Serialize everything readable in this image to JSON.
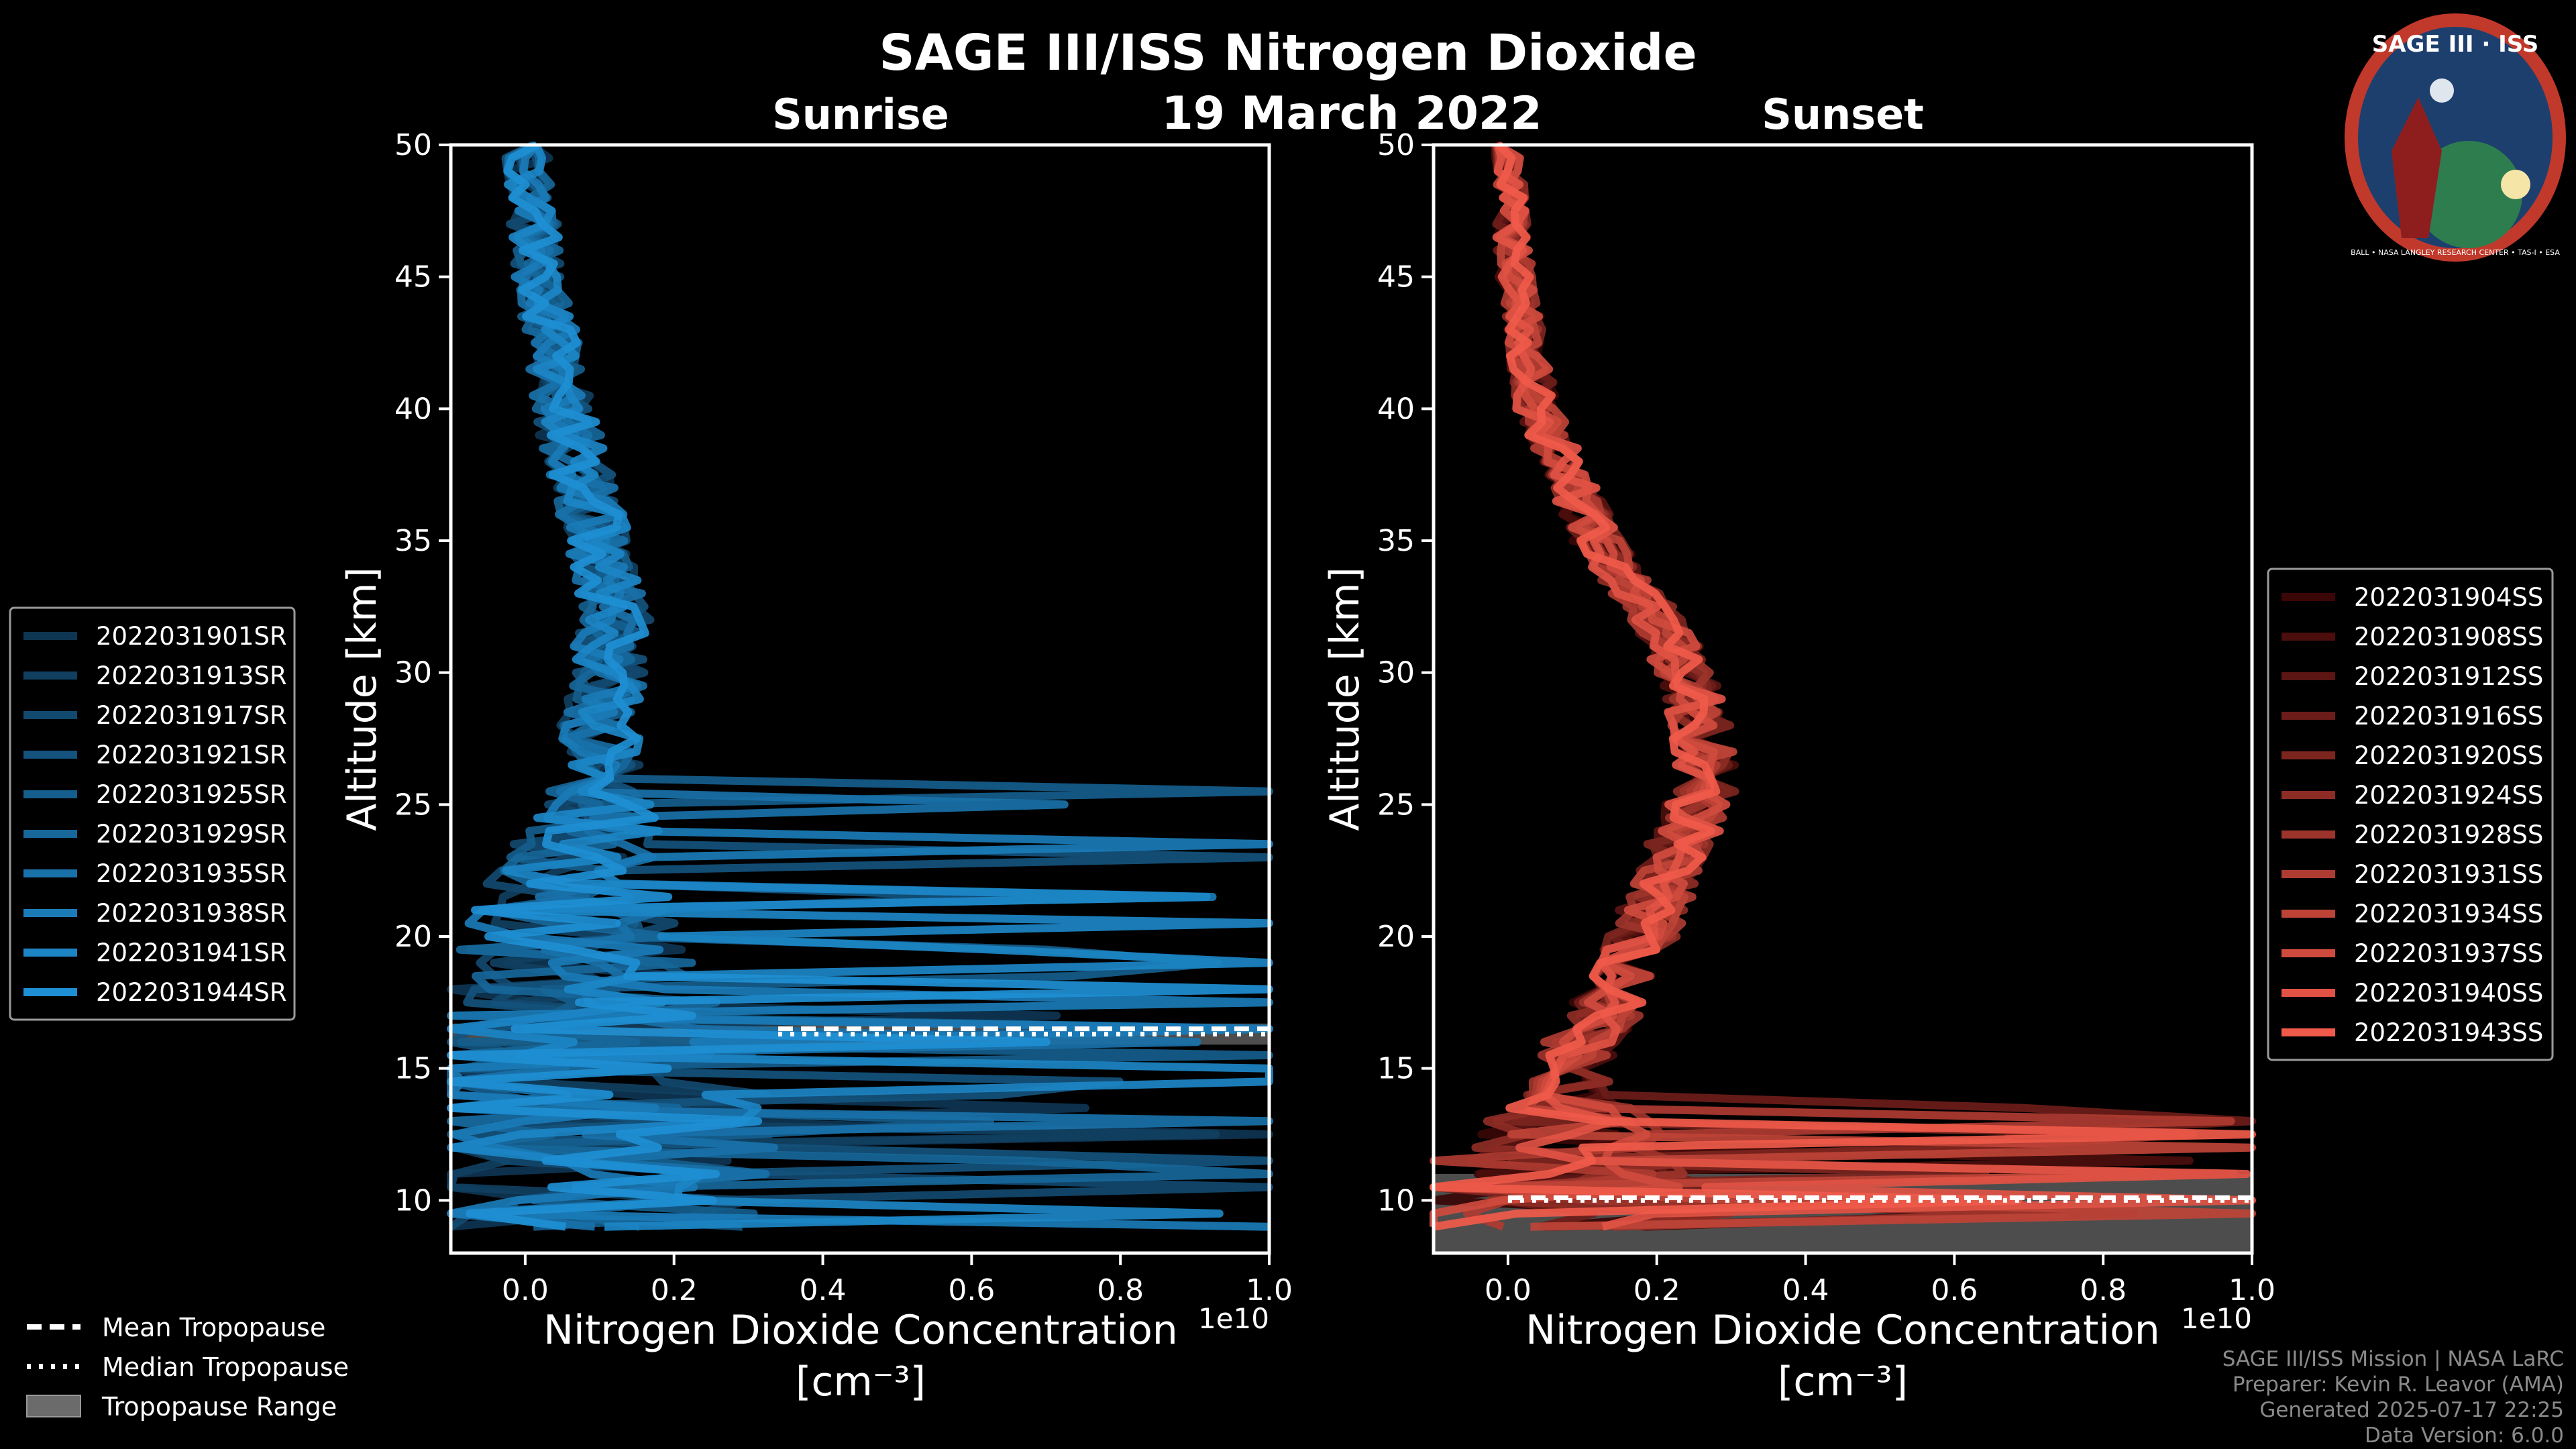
{
  "title": "SAGE III/ISS Nitrogen Dioxide",
  "subtitle": "19 March 2022",
  "logo": {
    "text": "SAGE III · ISS",
    "ring_text": "BALL • NASA LANGLEY RESEARCH CENTER • TAS-I • ESA",
    "colors": {
      "ring": "#c0392b",
      "field": "#1d3f6e",
      "globe": "#2e7d4f"
    }
  },
  "chart_data": [
    {
      "type": "line",
      "title": "Sunrise",
      "xlabel": "Nitrogen Dioxide Concentration",
      "xunit": "[cm⁻³]",
      "ylabel": "Altitude [km]",
      "offset_text": "1e10",
      "xlim": [
        -0.1,
        1.0
      ],
      "ylim": [
        8,
        50
      ],
      "xticks": [
        "0.0",
        "0.2",
        "0.4",
        "0.6",
        "0.8",
        "1.0"
      ],
      "xtick_values": [
        0.0,
        0.2,
        0.4,
        0.6,
        0.8,
        1.0
      ],
      "yticks": [
        "10",
        "15",
        "20",
        "25",
        "30",
        "35",
        "40",
        "45",
        "50"
      ],
      "ytick_values": [
        10,
        15,
        20,
        25,
        30,
        35,
        40,
        45,
        50
      ],
      "legend_position": "left",
      "series_colors_from": "#0e3552",
      "series_colors_to": "#1e8fd4",
      "series": [
        {
          "name": "2022031901SR"
        },
        {
          "name": "2022031913SR"
        },
        {
          "name": "2022031917SR"
        },
        {
          "name": "2022031921SR"
        },
        {
          "name": "2022031925SR"
        },
        {
          "name": "2022031929SR"
        },
        {
          "name": "2022031935SR"
        },
        {
          "name": "2022031938SR"
        },
        {
          "name": "2022031941SR"
        },
        {
          "name": "2022031944SR"
        }
      ],
      "profile": {
        "alt": [
          50,
          45,
          40,
          35,
          32,
          30,
          28,
          26,
          24,
          22,
          20,
          18,
          16,
          14,
          12,
          10
        ],
        "mean": [
          0.0,
          0.02,
          0.05,
          0.1,
          0.12,
          0.11,
          0.1,
          0.1,
          0.08,
          0.06,
          0.05,
          0.05,
          0.06,
          0.06,
          0.06,
          0.06
        ]
      },
      "noise_below_km": 26,
      "tropopause": {
        "mean_km": 16.5,
        "median_km": 16.3,
        "range_km": [
          15.9,
          16.7
        ],
        "x_start": 0.34
      }
    },
    {
      "type": "line",
      "title": "Sunset",
      "xlabel": "Nitrogen Dioxide Concentration",
      "xunit": "[cm⁻³]",
      "ylabel": "Altitude [km]",
      "offset_text": "1e10",
      "xlim": [
        -0.1,
        1.0
      ],
      "ylim": [
        8,
        50
      ],
      "xticks": [
        "0.0",
        "0.2",
        "0.4",
        "0.6",
        "0.8",
        "1.0"
      ],
      "xtick_values": [
        0.0,
        0.2,
        0.4,
        0.6,
        0.8,
        1.0
      ],
      "yticks": [
        "10",
        "15",
        "20",
        "25",
        "30",
        "35",
        "40",
        "45",
        "50"
      ],
      "ytick_values": [
        10,
        15,
        20,
        25,
        30,
        35,
        40,
        45,
        50
      ],
      "legend_position": "right",
      "series_colors_from": "#3a0606",
      "series_colors_to": "#f05a4a",
      "series": [
        {
          "name": "2022031904SS"
        },
        {
          "name": "2022031908SS"
        },
        {
          "name": "2022031912SS"
        },
        {
          "name": "2022031916SS"
        },
        {
          "name": "2022031920SS"
        },
        {
          "name": "2022031924SS"
        },
        {
          "name": "2022031928SS"
        },
        {
          "name": "2022031931SS"
        },
        {
          "name": "2022031934SS"
        },
        {
          "name": "2022031937SS"
        },
        {
          "name": "2022031940SS"
        },
        {
          "name": "2022031943SS"
        }
      ],
      "profile": {
        "alt": [
          50,
          45,
          40,
          35,
          32,
          30,
          28,
          26,
          24,
          22,
          20,
          18,
          16,
          14,
          12,
          10
        ],
        "mean": [
          0.0,
          0.01,
          0.04,
          0.12,
          0.2,
          0.24,
          0.26,
          0.27,
          0.24,
          0.21,
          0.18,
          0.15,
          0.1,
          0.08,
          0.05,
          0.04
        ]
      },
      "noise_below_km": 14,
      "tropopause": {
        "mean_km": 10.1,
        "median_km": 10.0,
        "range_km": [
          8.0,
          11.0
        ],
        "x_start": 0.0
      }
    }
  ],
  "bottom_legend": {
    "mean": "Mean Tropopause",
    "median": "Median Tropopause",
    "range": "Tropopause Range"
  },
  "credits": {
    "line1": "SAGE III/ISS Mission | NASA LaRC",
    "line2": "Preparer: Kevin R. Leavor (AMA)",
    "line3": "Generated 2025-07-17 22:25",
    "line4": "Data Version: 6.0.0"
  }
}
